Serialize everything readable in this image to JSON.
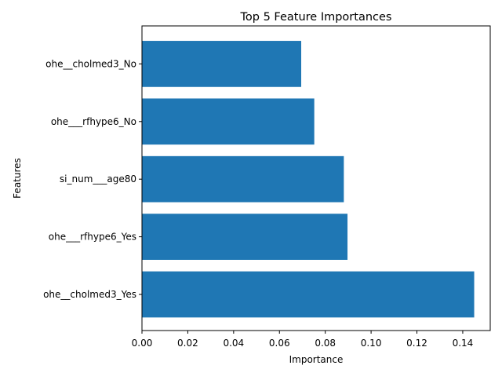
{
  "chart_data": {
    "type": "bar",
    "orientation": "horizontal",
    "title": "Top 5 Feature Importances",
    "xlabel": "Importance",
    "ylabel": "Features",
    "categories": [
      "ohe__cholmed3_Yes",
      "ohe___rfhype6_Yes",
      "si_num___age80",
      "ohe___rfhype6_No",
      "ohe__cholmed3_No"
    ],
    "values": [
      0.145,
      0.0897,
      0.0881,
      0.0752,
      0.0695
    ],
    "xlim": [
      0,
      0.152
    ],
    "xticks": [
      "0.00",
      "0.02",
      "0.04",
      "0.06",
      "0.08",
      "0.10",
      "0.12",
      "0.14"
    ],
    "bar_color": "#1f77b4",
    "grid": false,
    "legend": "none"
  }
}
